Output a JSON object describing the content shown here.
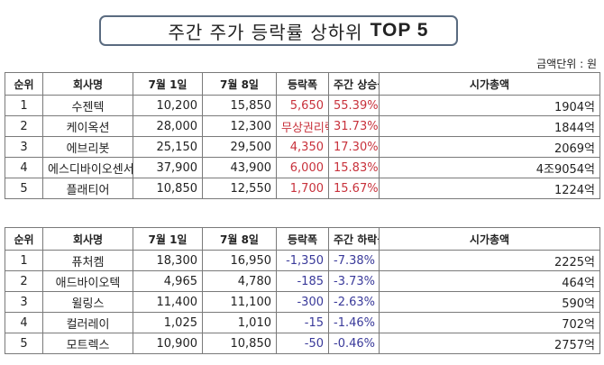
{
  "title": {
    "korean": "주간 주가 등락률 상하위",
    "english": "TOP 5"
  },
  "unit_label": "금액단위 : 원",
  "colors": {
    "up": "#c8323c",
    "down": "#3a3a9a",
    "title_border": "#5a6b80"
  },
  "gainers": {
    "headers": [
      "순위",
      "회사명",
      "7월 1일",
      "7월 8일",
      "등락폭",
      "주간 상승률",
      "시가총액"
    ],
    "rows": [
      {
        "rank": "1",
        "company": "수젠텍",
        "jul1": "10,200",
        "jul8": "15,850",
        "change": "5,650",
        "rate": "55.39%",
        "market_cap": "1904억"
      },
      {
        "rank": "2",
        "company": "케이옥션",
        "jul1": "28,000",
        "jul8": "12,300",
        "change": "무상권리락",
        "rate": "31.73%",
        "market_cap": "1844억"
      },
      {
        "rank": "3",
        "company": "에브리봇",
        "jul1": "25,150",
        "jul8": "29,500",
        "change": "4,350",
        "rate": "17.30%",
        "market_cap": "2069억"
      },
      {
        "rank": "4",
        "company": "에스디바이오센서",
        "jul1": "37,900",
        "jul8": "43,900",
        "change": "6,000",
        "rate": "15.83%",
        "market_cap": "4조9054억"
      },
      {
        "rank": "5",
        "company": "플래티어",
        "jul1": "10,850",
        "jul8": "12,550",
        "change": "1,700",
        "rate": "15.67%",
        "market_cap": "1224억"
      }
    ]
  },
  "losers": {
    "headers": [
      "순위",
      "회사명",
      "7월 1일",
      "7월 8일",
      "등락폭",
      "주간 하락률",
      "시가총액"
    ],
    "rows": [
      {
        "rank": "1",
        "company": "퓨처켐",
        "jul1": "18,300",
        "jul8": "16,950",
        "change": "-1,350",
        "rate": "-7.38%",
        "market_cap": "2225억"
      },
      {
        "rank": "2",
        "company": "애드바이오텍",
        "jul1": "4,965",
        "jul8": "4,780",
        "change": "-185",
        "rate": "-3.73%",
        "market_cap": "464억"
      },
      {
        "rank": "3",
        "company": "윌링스",
        "jul1": "11,400",
        "jul8": "11,100",
        "change": "-300",
        "rate": "-2.63%",
        "market_cap": "590억"
      },
      {
        "rank": "4",
        "company": "컬러레이",
        "jul1": "1,025",
        "jul8": "1,010",
        "change": "-15",
        "rate": "-1.46%",
        "market_cap": "702억"
      },
      {
        "rank": "5",
        "company": "모트렉스",
        "jul1": "10,900",
        "jul8": "10,850",
        "change": "-50",
        "rate": "-0.46%",
        "market_cap": "2757억"
      }
    ]
  }
}
